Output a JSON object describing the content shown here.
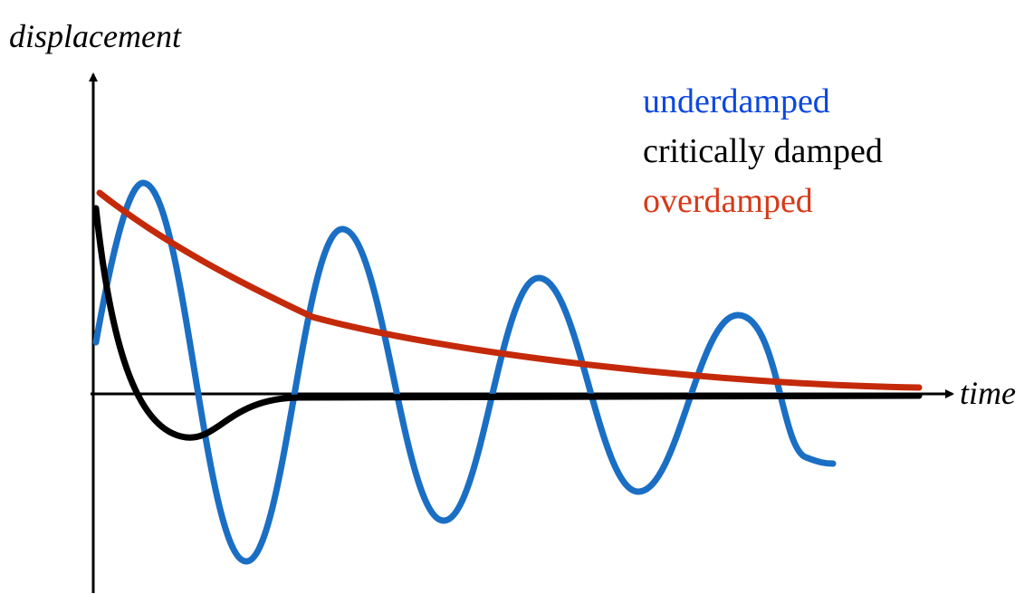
{
  "axes": {
    "y_label": "displacement",
    "x_label": "time"
  },
  "legend": {
    "items": [
      {
        "label": "underdamped"
      },
      {
        "label": "critically damped"
      },
      {
        "label": "overdamped"
      }
    ]
  }
}
